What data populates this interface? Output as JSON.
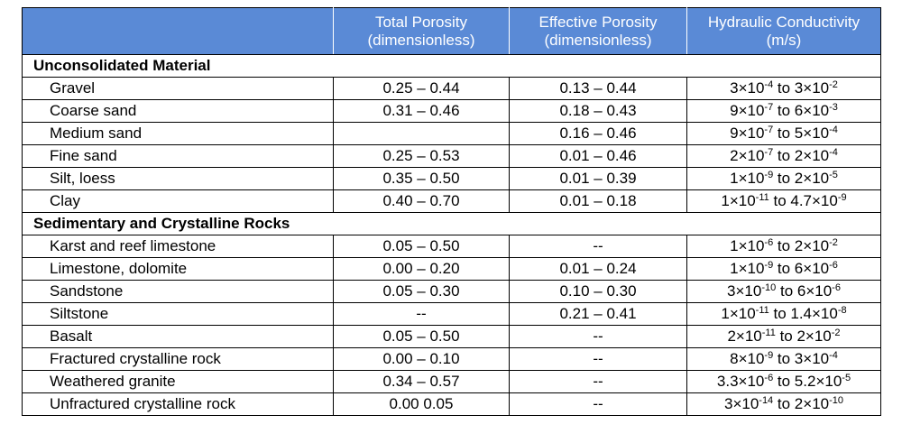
{
  "header": {
    "columns": [
      [
        "Total Porosity",
        "(dimensionless)"
      ],
      [
        "Effective Porosity",
        "(dimensionless)"
      ],
      [
        "Hydraulic Conductivity",
        "(m/s)"
      ]
    ]
  },
  "sections": [
    {
      "title": "Unconsolidated Material",
      "rows": [
        [
          "Gravel",
          "0.25 – 0.44",
          "0.13 – 0.44",
          [
            "3×10",
            "-4",
            " to 3×10",
            "-2"
          ]
        ],
        [
          "Coarse sand",
          "0.31 – 0.46",
          "0.18 – 0.43",
          [
            "9×10",
            "-7",
            " to 6×10",
            "-3"
          ]
        ],
        [
          "Medium sand",
          null,
          "0.16 – 0.46",
          [
            "9×10",
            "-7",
            " to 5×10",
            "-4"
          ]
        ],
        [
          "Fine sand",
          "0.25 – 0.53",
          "0.01 – 0.46",
          [
            "2×10",
            "-7",
            " to 2×10",
            "-4"
          ]
        ],
        [
          "Silt, loess",
          "0.35 – 0.50",
          "0.01 – 0.39",
          [
            "1×10",
            "-9",
            " to 2×10",
            "-5"
          ]
        ],
        [
          "Clay",
          "0.40 – 0.70",
          "0.01 – 0.18",
          [
            "1×10",
            "-11",
            " to 4.7×10",
            "-9"
          ]
        ]
      ]
    },
    {
      "title": "Sedimentary and Crystalline Rocks",
      "rows": [
        [
          "Karst and reef limestone",
          "0.05 – 0.50",
          "--",
          [
            "1×10",
            "-6",
            " to 2×10",
            "-2"
          ]
        ],
        [
          "Limestone, dolomite",
          "0.00 – 0.20",
          "0.01 – 0.24",
          [
            "1×10",
            "-9",
            " to 6×10",
            "-6"
          ]
        ],
        [
          "Sandstone",
          "0.05 – 0.30",
          "0.10 – 0.30",
          [
            "3×10",
            "-10",
            " to 6×10",
            "-6"
          ]
        ],
        [
          "Siltstone",
          "--",
          "0.21 – 0.41",
          [
            "1×10",
            "-11",
            " to 1.4×10",
            "-8"
          ]
        ],
        [
          "Basalt",
          "0.05 – 0.50",
          "--",
          [
            "2×10",
            "-11",
            " to 2×10",
            "-2"
          ]
        ],
        [
          "Fractured crystalline rock",
          "0.00 – 0.10",
          "--",
          [
            "8×10",
            "-9",
            " to 3×10",
            "-4"
          ]
        ],
        [
          "Weathered granite",
          "0.34 – 0.57",
          "--",
          [
            "3.3×10",
            "-6",
            " to 5.2×10",
            "-5"
          ]
        ],
        [
          "Unfractured crystalline rock",
          "0.00 0.05",
          "--",
          [
            "3×10",
            "-14",
            " to 2×10",
            "-10"
          ]
        ]
      ]
    }
  ]
}
